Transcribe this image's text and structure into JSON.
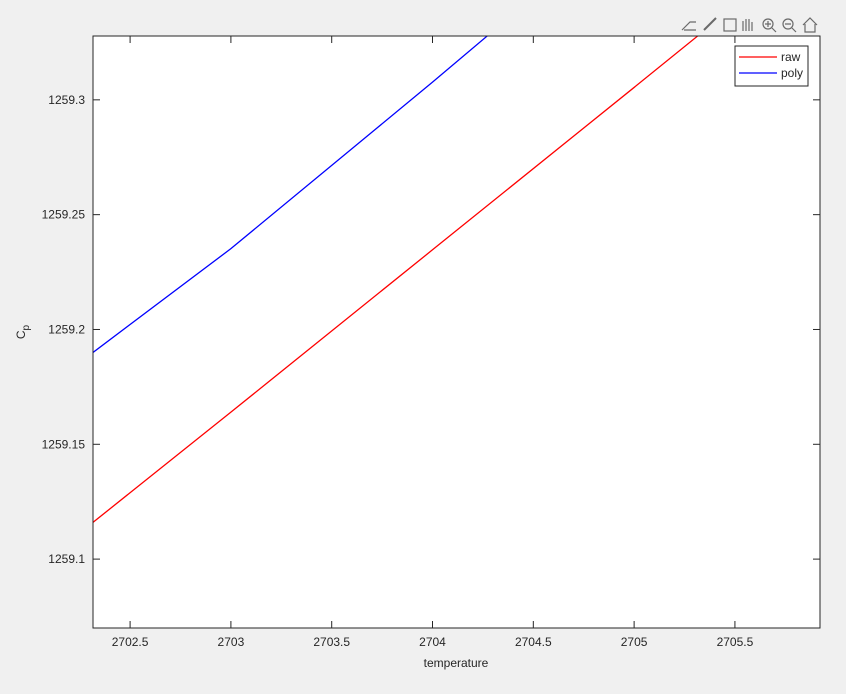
{
  "chart_data": {
    "type": "line",
    "x_label": "temperature",
    "y_label": {
      "main": "C",
      "sub": "p"
    },
    "xlim": [
      2702.316,
      2705.922
    ],
    "ylim": [
      1259.07,
      1259.3278
    ],
    "xticks": [
      2702.5,
      2703,
      2703.5,
      2704,
      2704.5,
      2705,
      2705.5
    ],
    "yticks": [
      1259.1,
      1259.15,
      1259.2,
      1259.25,
      1259.3
    ],
    "legend": "top-right",
    "series": [
      {
        "name": "raw",
        "color": "#ff0000",
        "x": [
          2702.316,
          2703,
          2704,
          2705,
          2705.318
        ],
        "values": [
          1259.116,
          1259.164,
          1259.2347,
          1259.3054,
          1259.328
        ]
      },
      {
        "name": "poly",
        "color": "#0000ff",
        "x": [
          2702.316,
          2703,
          2704,
          2704.274
        ],
        "values": [
          1259.19,
          1259.2352,
          1259.3077,
          1259.328
        ]
      }
    ]
  }
}
